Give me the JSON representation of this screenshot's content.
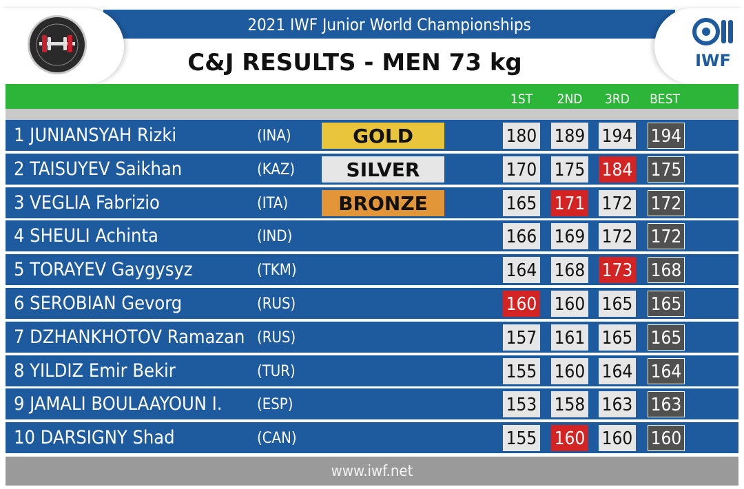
{
  "header": {
    "title": "2021 IWF Junior World Championships",
    "subtitle": "C&J RESULTS - MEN 73 kg",
    "left_logo": "championship-emblem-icon",
    "right_logo_text": "IWF"
  },
  "columns": {
    "first": "1ST",
    "second": "2ND",
    "third": "3RD",
    "best": "BEST"
  },
  "colors": {
    "header_blue": "#1d5a9e",
    "row_blue": "#1d5a9e",
    "green": "#2db53a",
    "gold": "#e8c53a",
    "silver": "#e6e6e6",
    "bronze": "#e29638",
    "fail_red": "#d42323",
    "best_gray": "#505050"
  },
  "rows": [
    {
      "rank": "1",
      "name": "1 JUNIANSYAH Rizki",
      "nation": "(INA)",
      "medal": "GOLD",
      "medal_type": "gold",
      "lifts": [
        {
          "v": "180",
          "ok": true
        },
        {
          "v": "189",
          "ok": true
        },
        {
          "v": "194",
          "ok": true
        }
      ],
      "best": "194"
    },
    {
      "rank": "2",
      "name": "2 TAISUYEV Saikhan",
      "nation": "(KAZ)",
      "medal": "SILVER",
      "medal_type": "silver",
      "lifts": [
        {
          "v": "170",
          "ok": true
        },
        {
          "v": "175",
          "ok": true
        },
        {
          "v": "184",
          "ok": false
        }
      ],
      "best": "175"
    },
    {
      "rank": "3",
      "name": "3 VEGLIA Fabrizio",
      "nation": "(ITA)",
      "medal": "BRONZE",
      "medal_type": "bronze",
      "lifts": [
        {
          "v": "165",
          "ok": true
        },
        {
          "v": "171",
          "ok": false
        },
        {
          "v": "172",
          "ok": true
        }
      ],
      "best": "172"
    },
    {
      "rank": "4",
      "name": "4 SHEULI Achinta",
      "nation": "(IND)",
      "medal": "",
      "medal_type": "",
      "lifts": [
        {
          "v": "166",
          "ok": true
        },
        {
          "v": "169",
          "ok": true
        },
        {
          "v": "172",
          "ok": true
        }
      ],
      "best": "172"
    },
    {
      "rank": "5",
      "name": "5 TORAYEV Gaygysyz",
      "nation": "(TKM)",
      "medal": "",
      "medal_type": "",
      "lifts": [
        {
          "v": "164",
          "ok": true
        },
        {
          "v": "168",
          "ok": true
        },
        {
          "v": "173",
          "ok": false
        }
      ],
      "best": "168"
    },
    {
      "rank": "6",
      "name": "6 SEROBIAN Gevorg",
      "nation": "(RUS)",
      "medal": "",
      "medal_type": "",
      "lifts": [
        {
          "v": "160",
          "ok": false
        },
        {
          "v": "160",
          "ok": true
        },
        {
          "v": "165",
          "ok": true
        }
      ],
      "best": "165"
    },
    {
      "rank": "7",
      "name": "7 DZHANKHOTOV Ramazan",
      "nation": "(RUS)",
      "medal": "",
      "medal_type": "",
      "lifts": [
        {
          "v": "157",
          "ok": true
        },
        {
          "v": "161",
          "ok": true
        },
        {
          "v": "165",
          "ok": true
        }
      ],
      "best": "165"
    },
    {
      "rank": "8",
      "name": "8 YILDIZ Emir Bekir",
      "nation": "(TUR)",
      "medal": "",
      "medal_type": "",
      "lifts": [
        {
          "v": "155",
          "ok": true
        },
        {
          "v": "160",
          "ok": true
        },
        {
          "v": "164",
          "ok": true
        }
      ],
      "best": "164"
    },
    {
      "rank": "9",
      "name": "9 JAMALI BOULAAYOUN I.",
      "nation": "(ESP)",
      "medal": "",
      "medal_type": "",
      "lifts": [
        {
          "v": "153",
          "ok": true
        },
        {
          "v": "158",
          "ok": true
        },
        {
          "v": "163",
          "ok": true
        }
      ],
      "best": "163"
    },
    {
      "rank": "10",
      "name": "10 DARSIGNY Shad",
      "nation": "(CAN)",
      "medal": "",
      "medal_type": "",
      "lifts": [
        {
          "v": "155",
          "ok": true
        },
        {
          "v": "160",
          "ok": false
        },
        {
          "v": "160",
          "ok": true
        }
      ],
      "best": "160"
    }
  ],
  "footer": {
    "url": "www.iwf.net"
  }
}
